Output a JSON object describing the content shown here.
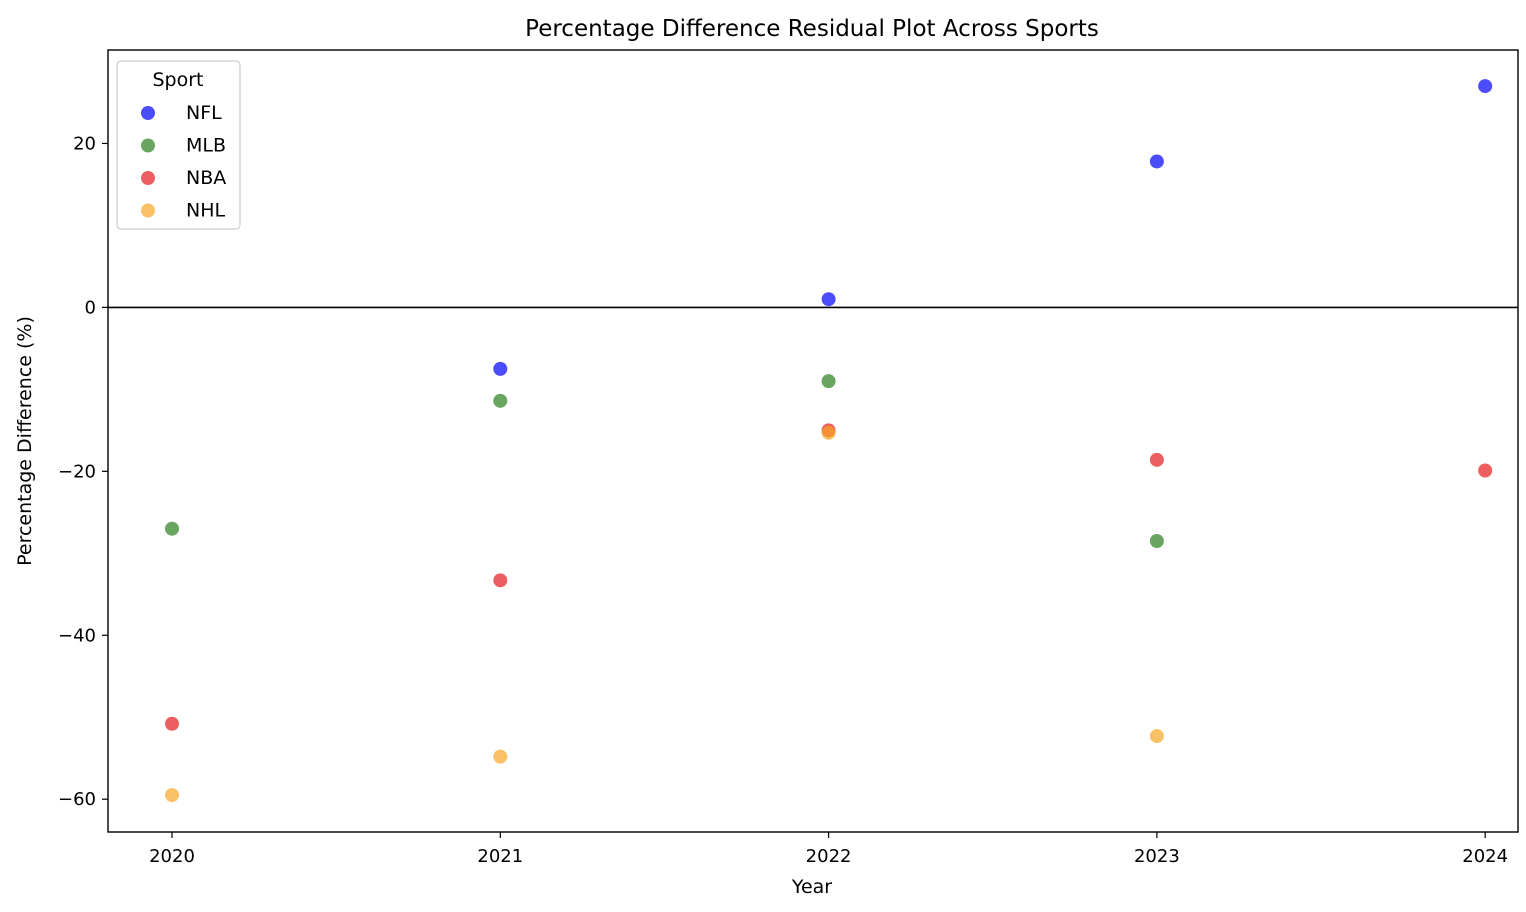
{
  "chart_data": {
    "type": "scatter",
    "title": "Percentage Difference Residual Plot Across Sports",
    "xlabel": "Year",
    "ylabel": "Percentage Difference (%)",
    "xlim": [
      2019.805,
      2024.1
    ],
    "ylim": [
      -64,
      31.4
    ],
    "x_ticks": [
      "2020",
      "2021",
      "2022",
      "2023",
      "2024"
    ],
    "y_ticks": [
      "20",
      "0",
      "−20",
      "−40",
      "−60"
    ],
    "y_tick_values": [
      20,
      0,
      -20,
      -40,
      -60
    ],
    "grid": false,
    "zero_line": 0,
    "legend": {
      "title": "Sport",
      "placement": "top-left"
    },
    "series": [
      {
        "name": "NFL",
        "color": "#0000ff",
        "points": [
          [
            2021,
            -7.5
          ],
          [
            2022,
            1.0
          ],
          [
            2023,
            17.8
          ],
          [
            2024,
            27.0
          ]
        ]
      },
      {
        "name": "MLB",
        "color": "#2a7d1c",
        "points": [
          [
            2020,
            -27.0
          ],
          [
            2021,
            -11.4
          ],
          [
            2022,
            -9.0
          ],
          [
            2023,
            -28.5
          ]
        ]
      },
      {
        "name": "NBA",
        "color": "#e41a1c",
        "points": [
          [
            2020,
            -50.8
          ],
          [
            2021,
            -33.3
          ],
          [
            2022,
            -15.0
          ],
          [
            2023,
            -18.6
          ],
          [
            2024,
            -19.9
          ]
        ]
      },
      {
        "name": "NHL",
        "color": "#f5a623",
        "points": [
          [
            2020,
            -59.5
          ],
          [
            2021,
            -54.8
          ],
          [
            2022,
            -15.3
          ],
          [
            2023,
            -52.3
          ]
        ]
      }
    ]
  }
}
